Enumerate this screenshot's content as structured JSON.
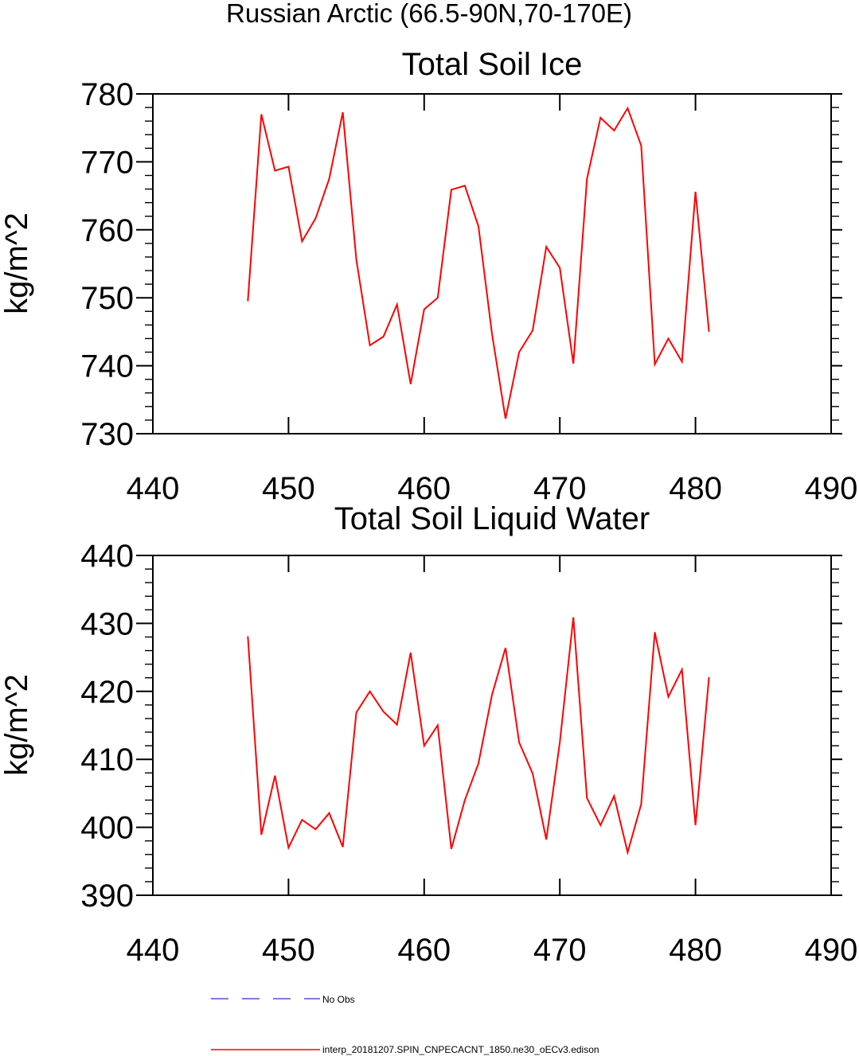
{
  "suptitle": "Russian Arctic (66.5-90N,70-170E)",
  "chart_data": [
    {
      "type": "line",
      "title": "Total Soil Ice",
      "ylabel": "kg/m^2",
      "xlabel": "",
      "xlim": [
        440,
        490
      ],
      "ylim": [
        730,
        780
      ],
      "xticks": [
        440,
        450,
        460,
        470,
        480,
        490
      ],
      "yticks": [
        730,
        740,
        750,
        760,
        770,
        780
      ],
      "series": [
        {
          "name": "interp_20181207.SPIN_CNPECACNT_1850.ne30_oECv3.edison",
          "color": "#ff0000",
          "x": [
            447,
            448,
            449,
            450,
            451,
            452,
            453,
            454,
            455,
            456,
            457,
            458,
            459,
            460,
            461,
            462,
            463,
            464,
            465,
            466,
            467,
            468,
            469,
            470,
            471,
            472,
            473,
            474,
            475,
            476,
            477,
            478,
            479,
            480,
            481
          ],
          "y": [
            749.5,
            777,
            768.7,
            769.3,
            758.3,
            761.7,
            767.5,
            777.3,
            755.6,
            743,
            744.3,
            749,
            737.3,
            748.3,
            750,
            765.9,
            766.5,
            760.5,
            744.7,
            732.2,
            742,
            745.2,
            757.5,
            754.4,
            740.3,
            767.5,
            776.5,
            774.6,
            777.9,
            772.4,
            740.2,
            744,
            740.6,
            765.6,
            745
          ]
        }
      ]
    },
    {
      "type": "line",
      "title": "Total Soil Liquid Water",
      "ylabel": "kg/m^2",
      "xlabel": "",
      "xlim": [
        440,
        490
      ],
      "ylim": [
        390,
        440
      ],
      "xticks": [
        440,
        450,
        460,
        470,
        480,
        490
      ],
      "yticks": [
        390,
        400,
        410,
        420,
        430,
        440
      ],
      "series": [
        {
          "name": "interp_20181207.SPIN_CNPECACNT_1850.ne30_oECv3.edison",
          "color": "#ff0000",
          "x": [
            447,
            448,
            449,
            450,
            451,
            452,
            453,
            454,
            455,
            456,
            457,
            458,
            459,
            460,
            461,
            462,
            463,
            464,
            465,
            466,
            467,
            468,
            469,
            470,
            471,
            472,
            473,
            474,
            475,
            476,
            477,
            478,
            479,
            480,
            481
          ],
          "y": [
            428.1,
            398.9,
            407.6,
            397,
            401.1,
            399.7,
            402.1,
            397.1,
            416.9,
            420,
            417,
            415.1,
            425.7,
            412,
            415,
            396.8,
            404,
            409.4,
            419.5,
            426.4,
            412.5,
            407.9,
            398.2,
            412.5,
            430.9,
            404.3,
            400.3,
            404.6,
            396.3,
            403.4,
            428.7,
            419.2,
            423.2,
            400.3,
            422.1
          ]
        }
      ]
    }
  ],
  "legend": {
    "items": [
      {
        "label": "No Obs",
        "color": "#5050d8",
        "style": "dashed"
      },
      {
        "label": "interp_20181207.SPIN_CNPECACNT_1850.ne30_oECv3.edison",
        "color": "#ff0000",
        "style": "solid"
      }
    ]
  }
}
